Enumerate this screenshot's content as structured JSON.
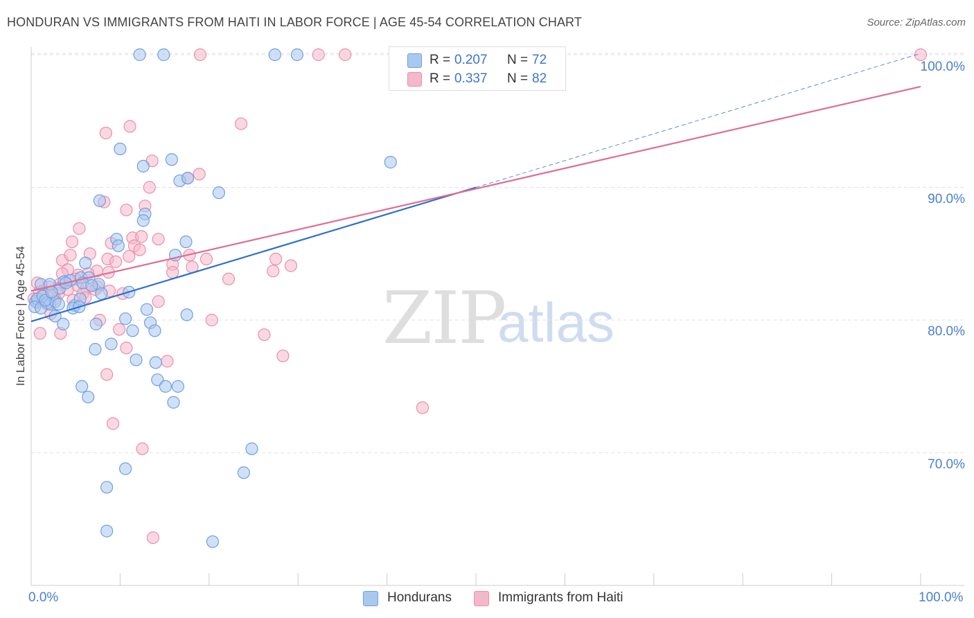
{
  "header": {
    "title": "HONDURAN VS IMMIGRANTS FROM HAITI IN LABOR FORCE | AGE 45-54 CORRELATION CHART",
    "source": "Source: ZipAtlas.com"
  },
  "stats": {
    "blue": {
      "r_label": "R =",
      "r_value": "0.207",
      "n_label": "N =",
      "n_value": "72"
    },
    "pink": {
      "r_label": "R =",
      "r_value": "0.337",
      "n_label": "N =",
      "n_value": "82"
    }
  },
  "legend": {
    "blue_label": "Hondurans",
    "pink_label": "Immigrants from Haiti"
  },
  "watermark": {
    "zip": "ZIP",
    "atlas": "atlas"
  },
  "colors": {
    "blue_fill": "#a9c8f0",
    "blue_stroke": "#6f9fe0",
    "blue_line": "#2f6fce",
    "pink_fill": "#f5b8cb",
    "pink_stroke": "#e98fac",
    "pink_line": "#e06c94",
    "tick_text": "#4a7fd0"
  },
  "chart_data": {
    "type": "scatter",
    "title": "HONDURAN VS IMMIGRANTS FROM HAITI IN LABOR FORCE | AGE 45-54 CORRELATION CHART",
    "xlabel": "",
    "ylabel": "In Labor Force | Age 45-54",
    "xlim": [
      0,
      100
    ],
    "ylim": [
      61,
      101.8
    ],
    "x_tick_labels": [
      "0.0%",
      "100.0%"
    ],
    "y_ticks": [
      70,
      80,
      90,
      100
    ],
    "y_tick_labels": [
      "70.0%",
      "80.0%",
      "90.0%",
      "100.0%"
    ],
    "grid": true,
    "series": [
      {
        "name": "Hondurans",
        "color": "blue",
        "r": 0.207,
        "n": 72,
        "trend": {
          "x0": 0,
          "y0": 79.9,
          "x1": 50,
          "y1": 90.0
        },
        "trend_extension": {
          "x0": 50,
          "y0": 90.0,
          "x1": 100,
          "y1": 100.1
        },
        "points": [
          [
            12.2,
            100
          ],
          [
            14.9,
            100
          ],
          [
            27.4,
            100
          ],
          [
            29.9,
            100
          ],
          [
            10.0,
            92.9
          ],
          [
            12.6,
            91.6
          ],
          [
            15.8,
            92.1
          ],
          [
            16.7,
            90.5
          ],
          [
            17.6,
            90.7
          ],
          [
            21.1,
            89.6
          ],
          [
            40.4,
            91.9
          ],
          [
            7.7,
            89.0
          ],
          [
            12.8,
            88.0
          ],
          [
            12.6,
            87.5
          ],
          [
            9.6,
            86.1
          ],
          [
            9.8,
            85.6
          ],
          [
            17.4,
            85.9
          ],
          [
            16.2,
            84.9
          ],
          [
            6.1,
            84.3
          ],
          [
            1.1,
            82.7
          ],
          [
            2.1,
            82.7
          ],
          [
            3.2,
            82.4
          ],
          [
            3.7,
            82.9
          ],
          [
            4.4,
            83.0
          ],
          [
            5.6,
            83.2
          ],
          [
            6.5,
            83.2
          ],
          [
            7.6,
            82.7
          ],
          [
            5.8,
            82.8
          ],
          [
            7.9,
            82.0
          ],
          [
            11.0,
            82.1
          ],
          [
            0.5,
            81.4
          ],
          [
            0.7,
            81.6
          ],
          [
            1.3,
            81.8
          ],
          [
            1.8,
            81.3
          ],
          [
            2.1,
            81.2
          ],
          [
            2.7,
            81.4
          ],
          [
            3.1,
            81.2
          ],
          [
            4.9,
            81.1
          ],
          [
            5.5,
            81.6
          ],
          [
            0.4,
            81.0
          ],
          [
            1.1,
            80.9
          ],
          [
            4.7,
            80.9
          ],
          [
            5.4,
            81.0
          ],
          [
            13.0,
            80.8
          ],
          [
            2.7,
            80.3
          ],
          [
            10.6,
            80.1
          ],
          [
            17.5,
            80.4
          ],
          [
            3.6,
            79.7
          ],
          [
            7.3,
            79.7
          ],
          [
            13.4,
            79.8
          ],
          [
            11.4,
            79.2
          ],
          [
            13.9,
            79.2
          ],
          [
            9.0,
            78.2
          ],
          [
            7.2,
            77.8
          ],
          [
            11.8,
            77.0
          ],
          [
            14.0,
            76.8
          ],
          [
            14.2,
            75.5
          ],
          [
            15.1,
            75.0
          ],
          [
            16.5,
            75.0
          ],
          [
            5.7,
            75.0
          ],
          [
            6.4,
            74.2
          ],
          [
            16.0,
            73.8
          ],
          [
            24.8,
            70.3
          ],
          [
            10.6,
            68.8
          ],
          [
            23.9,
            68.5
          ],
          [
            8.5,
            67.4
          ],
          [
            8.5,
            64.1
          ],
          [
            20.4,
            63.3
          ],
          [
            1.6,
            81.5
          ],
          [
            2.3,
            82.1
          ],
          [
            6.8,
            82.6
          ],
          [
            3.9,
            82.8
          ]
        ]
      },
      {
        "name": "Immigrants from Haiti",
        "color": "pink",
        "r": 0.337,
        "n": 82,
        "trend": {
          "x0": 0,
          "y0": 82.2,
          "x1": 100,
          "y1": 97.6
        },
        "points": [
          [
            19.0,
            100
          ],
          [
            32.3,
            100
          ],
          [
            35.3,
            100
          ],
          [
            100,
            100
          ],
          [
            8.4,
            94.1
          ],
          [
            11.1,
            94.6
          ],
          [
            23.6,
            94.8
          ],
          [
            13.6,
            92.0
          ],
          [
            18.9,
            91.0
          ],
          [
            17.6,
            90.7
          ],
          [
            13.3,
            90.0
          ],
          [
            8.2,
            88.9
          ],
          [
            10.7,
            88.3
          ],
          [
            12.8,
            88.6
          ],
          [
            5.4,
            86.9
          ],
          [
            4.6,
            85.9
          ],
          [
            9.0,
            85.8
          ],
          [
            11.4,
            86.2
          ],
          [
            14.3,
            86.1
          ],
          [
            12.4,
            86.3
          ],
          [
            11.6,
            85.6
          ],
          [
            12.2,
            85.3
          ],
          [
            6.6,
            85.0
          ],
          [
            8.6,
            84.6
          ],
          [
            3.5,
            84.5
          ],
          [
            4.4,
            84.9
          ],
          [
            11.0,
            84.8
          ],
          [
            19.7,
            84.6
          ],
          [
            27.5,
            84.6
          ],
          [
            29.2,
            84.1
          ],
          [
            15.9,
            84.2
          ],
          [
            18.1,
            84.0
          ],
          [
            4.1,
            83.8
          ],
          [
            3.5,
            83.5
          ],
          [
            5.3,
            83.4
          ],
          [
            7.4,
            83.7
          ],
          [
            6.4,
            83.5
          ],
          [
            8.7,
            83.6
          ],
          [
            15.9,
            83.6
          ],
          [
            22.2,
            83.1
          ],
          [
            27.2,
            83.7
          ],
          [
            0.7,
            82.8
          ],
          [
            2.0,
            82.5
          ],
          [
            3.2,
            82.7
          ],
          [
            5.2,
            82.6
          ],
          [
            6.2,
            82.4
          ],
          [
            7.5,
            82.5
          ],
          [
            0.9,
            82.1
          ],
          [
            1.4,
            82.2
          ],
          [
            3.1,
            82.0
          ],
          [
            4.1,
            82.3
          ],
          [
            5.8,
            82.0
          ],
          [
            7.2,
            82.3
          ],
          [
            8.8,
            82.2
          ],
          [
            10.3,
            82.0
          ],
          [
            0.3,
            81.6
          ],
          [
            1.3,
            81.8
          ],
          [
            2.7,
            81.6
          ],
          [
            4.7,
            81.5
          ],
          [
            0.7,
            81.3
          ],
          [
            1.8,
            81.2
          ],
          [
            14.3,
            81.4
          ],
          [
            2.2,
            80.5
          ],
          [
            7.7,
            80.0
          ],
          [
            20.3,
            80.0
          ],
          [
            1.0,
            79.0
          ],
          [
            3.3,
            79.0
          ],
          [
            9.9,
            79.3
          ],
          [
            26.2,
            78.9
          ],
          [
            10.7,
            77.9
          ],
          [
            28.3,
            77.3
          ],
          [
            15.3,
            76.9
          ],
          [
            8.5,
            75.9
          ],
          [
            44.0,
            73.4
          ],
          [
            9.2,
            72.2
          ],
          [
            12.5,
            70.3
          ],
          [
            13.7,
            63.6
          ],
          [
            9.5,
            84.4
          ],
          [
            17.8,
            84.9
          ],
          [
            6.1,
            81.7
          ],
          [
            5.0,
            83.1
          ],
          [
            2.4,
            81.9
          ]
        ]
      }
    ]
  }
}
